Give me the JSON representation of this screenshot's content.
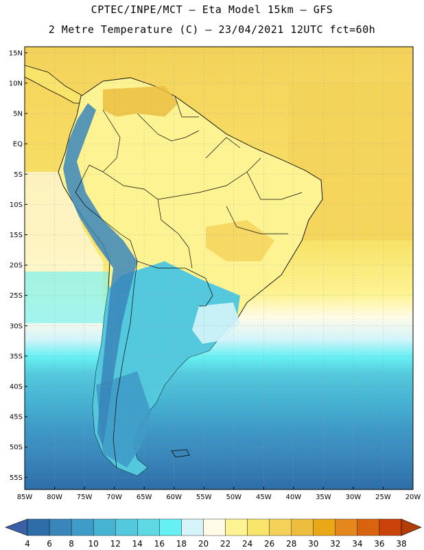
{
  "header": {
    "line1": "CPTEC/INPE/MCT –  Eta Model 15km – GFS",
    "line2": "2 Metre Temperature (C) – 23/04/2021 12UTC fct=60h"
  },
  "map": {
    "lat_labels": [
      "15N",
      "10N",
      "5N",
      "EQ",
      "5S",
      "10S",
      "15S",
      "20S",
      "25S",
      "30S",
      "35S",
      "40S",
      "45S",
      "50S",
      "55S"
    ],
    "lon_labels": [
      "85W",
      "80W",
      "75W",
      "70W",
      "65W",
      "60W",
      "55W",
      "50W",
      "45W",
      "40W",
      "35W",
      "30W",
      "25W",
      "20W"
    ],
    "lon_range": [
      -85,
      -20
    ],
    "lat_range": [
      -57,
      16
    ],
    "grid": true
  },
  "colorbar": {
    "labels": [
      "4",
      "6",
      "8",
      "10",
      "12",
      "14",
      "16",
      "18",
      "20",
      "22",
      "24",
      "26",
      "28",
      "30",
      "32",
      "34",
      "36",
      "38"
    ],
    "colors": [
      "#2d6ea8",
      "#3a85ba",
      "#3f9bc7",
      "#47b3d3",
      "#54c8dc",
      "#5ed8e2",
      "#67f0f3",
      "#d4f4fa",
      "#fffbe6",
      "#fef393",
      "#f8e46b",
      "#f4d25a",
      "#ecbd3f",
      "#eaa718",
      "#e4871c",
      "#d9630f",
      "#c94209"
    ],
    "low_color": "#3a5fa5",
    "high_color": "#b33d06"
  }
}
